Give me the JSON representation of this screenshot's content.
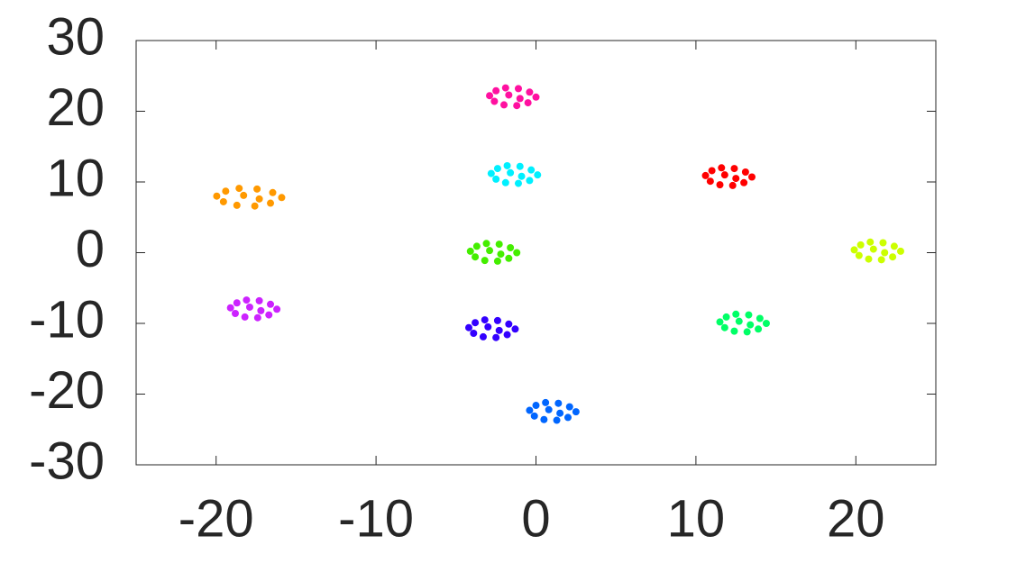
{
  "chart_data": {
    "type": "scatter",
    "xlim": [
      -25,
      25
    ],
    "ylim": [
      -30,
      30
    ],
    "xticks": [
      -20,
      -10,
      0,
      10,
      20
    ],
    "yticks": [
      -30,
      -20,
      -10,
      0,
      10,
      20,
      30
    ],
    "grid": false,
    "series": [
      {
        "color": "#ff10a0",
        "x": [
          -2.9,
          -2.5,
          -1.9,
          -1.1,
          -0.4,
          0,
          -0.5,
          -1.2,
          -2,
          -2.6,
          -1.7,
          -1
        ],
        "y": [
          22.2,
          22.9,
          23.3,
          23.2,
          22.7,
          22,
          21.2,
          20.8,
          20.9,
          21.4,
          22.3,
          21.8
        ]
      },
      {
        "color": "#00f0ff",
        "x": [
          -2.8,
          -2.4,
          -1.8,
          -1,
          -0.3,
          0.1,
          -0.4,
          -1.1,
          -1.9,
          -2.5,
          -1.6,
          -0.9
        ],
        "y": [
          11.2,
          11.9,
          12.3,
          12.2,
          11.7,
          11,
          10.2,
          9.8,
          9.9,
          10.4,
          11.3,
          10.8
        ]
      },
      {
        "color": "#ff0000",
        "x": [
          10.6,
          11,
          11.6,
          12.4,
          13.1,
          13.5,
          13,
          12.3,
          11.5,
          10.9,
          11.8,
          12.5
        ],
        "y": [
          10.9,
          11.6,
          12,
          11.9,
          11.4,
          10.7,
          9.9,
          9.5,
          9.6,
          10.1,
          11,
          10.5
        ]
      },
      {
        "color": "#ff9900",
        "x": [
          -19.96,
          -19.4,
          -18.56,
          -17.44,
          -16.46,
          -15.9,
          -16.6,
          -17.58,
          -18.7,
          -19.54,
          -18.28,
          -17.3
        ],
        "y": [
          8,
          8.7,
          9.1,
          9,
          8.5,
          7.8,
          7,
          6.6,
          6.7,
          7.2,
          8.1,
          7.6
        ]
      },
      {
        "color": "#44ee00",
        "x": [
          -4.1,
          -3.7,
          -3.1,
          -2.3,
          -1.6,
          -1.2,
          -1.7,
          -2.4,
          -3.2,
          -3.8,
          -2.9,
          -2.2
        ],
        "y": [
          0.2,
          0.9,
          1.3,
          1.2,
          0.7,
          0,
          -0.8,
          -1.2,
          -1.1,
          -0.6,
          0.3,
          -0.2
        ]
      },
      {
        "color": "#ccff00",
        "x": [
          19.9,
          20.3,
          20.9,
          21.7,
          22.4,
          22.8,
          22.3,
          21.6,
          20.8,
          20.2,
          21.1,
          21.8
        ],
        "y": [
          0.4,
          1.1,
          1.5,
          1.4,
          0.9,
          0.2,
          -0.6,
          -1,
          -0.9,
          -0.4,
          0.5,
          0
        ]
      },
      {
        "color": "#cc22ff",
        "x": [
          -19.1,
          -18.7,
          -18.1,
          -17.3,
          -16.6,
          -16.2,
          -16.7,
          -17.4,
          -18.2,
          -18.8,
          -17.9,
          -17.2
        ],
        "y": [
          -7.8,
          -7.1,
          -6.7,
          -6.8,
          -7.3,
          -8,
          -8.8,
          -9.2,
          -9.1,
          -8.6,
          -7.7,
          -8.2
        ]
      },
      {
        "color": "#3300ff",
        "x": [
          -4.2,
          -3.8,
          -3.2,
          -2.4,
          -1.7,
          -1.3,
          -1.8,
          -2.5,
          -3.3,
          -3.9,
          -3,
          -2.3
        ],
        "y": [
          -10.6,
          -9.9,
          -9.5,
          -9.6,
          -10.1,
          -10.8,
          -11.6,
          -12,
          -11.9,
          -11.4,
          -10.5,
          -11
        ]
      },
      {
        "color": "#00ff66",
        "x": [
          11.5,
          11.9,
          12.5,
          13.3,
          14,
          14.4,
          13.9,
          13.2,
          12.4,
          11.8,
          12.7,
          13.4
        ],
        "y": [
          -9.8,
          -9.1,
          -8.7,
          -8.8,
          -9.3,
          -10,
          -10.8,
          -11.2,
          -11.1,
          -10.6,
          -9.7,
          -10.2
        ]
      },
      {
        "color": "#0066ff",
        "x": [
          -0.4,
          0,
          0.6,
          1.4,
          2.1,
          2.5,
          2,
          1.3,
          0.5,
          -0.1,
          0.8,
          1.5
        ],
        "y": [
          -22.3,
          -21.6,
          -21.2,
          -21.3,
          -21.8,
          -22.5,
          -23.3,
          -23.7,
          -23.6,
          -23.1,
          -22.2,
          -22.7
        ]
      }
    ]
  }
}
